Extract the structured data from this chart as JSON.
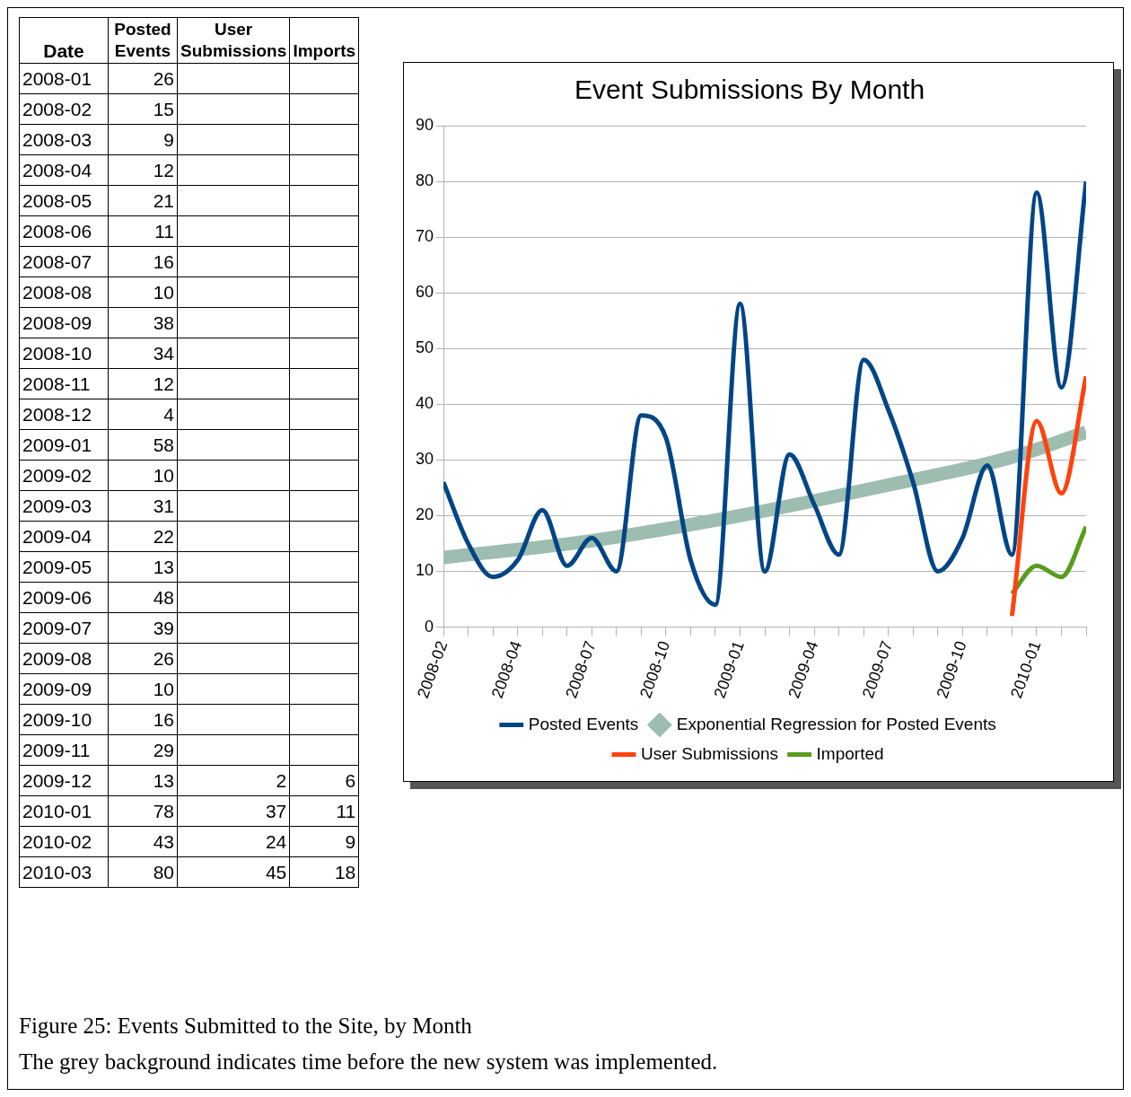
{
  "chart_data": [
    {
      "type": "other",
      "xlabel": "Date",
      "data_labels": true,
      "categories": [
        "2008-01",
        "2008-02",
        "2008-03",
        "2008-04",
        "2008-05",
        "2008-06",
        "2008-07",
        "2008-08",
        "2008-09",
        "2008-10",
        "2008-11",
        "2008-12",
        "2009-01",
        "2009-02",
        "2009-03",
        "2009-04",
        "2009-05",
        "2009-06",
        "2009-07",
        "2009-08",
        "2009-09",
        "2009-10",
        "2009-11",
        "2009-12",
        "2010-01",
        "2010-02",
        "2010-03"
      ],
      "series": [
        {
          "name": "Posted Events",
          "values": [
            26,
            15,
            9,
            12,
            21,
            11,
            16,
            10,
            38,
            34,
            12,
            4,
            58,
            10,
            31,
            22,
            13,
            48,
            39,
            26,
            10,
            16,
            29,
            13,
            78,
            43,
            80
          ]
        },
        {
          "name": "User Submissions",
          "values": [
            null,
            null,
            null,
            null,
            null,
            null,
            null,
            null,
            null,
            null,
            null,
            null,
            null,
            null,
            null,
            null,
            null,
            null,
            null,
            null,
            null,
            null,
            null,
            2,
            37,
            24,
            45
          ]
        },
        {
          "name": "Imports",
          "values": [
            null,
            null,
            null,
            null,
            null,
            null,
            null,
            null,
            null,
            null,
            null,
            null,
            null,
            null,
            null,
            null,
            null,
            null,
            null,
            null,
            null,
            null,
            null,
            6,
            11,
            9,
            18
          ]
        }
      ]
    },
    {
      "type": "line",
      "title": "Event Submissions By Month",
      "x": [
        "2008-01",
        "2008-02",
        "2008-03",
        "2008-04",
        "2008-05",
        "2008-06",
        "2008-07",
        "2008-08",
        "2008-09",
        "2008-10",
        "2008-11",
        "2008-12",
        "2009-01",
        "2009-02",
        "2009-03",
        "2009-04",
        "2009-05",
        "2009-06",
        "2009-07",
        "2009-08",
        "2009-09",
        "2009-10",
        "2009-11",
        "2009-12",
        "2010-01",
        "2010-02",
        "2010-03"
      ],
      "xlim": [
        "2008-01",
        "2010-03"
      ],
      "xticks": [
        {
          "value": "2008-01",
          "label": "2008-02"
        },
        {
          "value": "2008-02",
          "label": null
        },
        {
          "value": "2008-03",
          "label": null
        },
        {
          "value": "2008-04",
          "label": "2008-04"
        },
        {
          "value": "2008-05",
          "label": null
        },
        {
          "value": "2008-06",
          "label": null
        },
        {
          "value": "2008-07",
          "label": "2008-07"
        },
        {
          "value": "2008-08",
          "label": null
        },
        {
          "value": "2008-09",
          "label": null
        },
        {
          "value": "2008-10",
          "label": "2008-10"
        },
        {
          "value": "2008-11",
          "label": null
        },
        {
          "value": "2008-12",
          "label": null
        },
        {
          "value": "2009-01",
          "label": "2009-01"
        },
        {
          "value": "2009-02",
          "label": null
        },
        {
          "value": "2009-03",
          "label": null
        },
        {
          "value": "2009-04",
          "label": "2009-04"
        },
        {
          "value": "2009-05",
          "label": null
        },
        {
          "value": "2009-06",
          "label": null
        },
        {
          "value": "2009-07",
          "label": "2009-07"
        },
        {
          "value": "2009-08",
          "label": null
        },
        {
          "value": "2009-09",
          "label": null
        },
        {
          "value": "2009-10",
          "label": "2009-10"
        },
        {
          "value": "2009-11",
          "label": null
        },
        {
          "value": "2009-12",
          "label": null
        },
        {
          "value": "2010-01",
          "label": "2010-01"
        },
        {
          "value": "2010-02",
          "label": null
        },
        {
          "value": "2010-03",
          "label": null
        }
      ],
      "ylim": [
        0,
        90
      ],
      "yticks": [
        0,
        10,
        20,
        30,
        40,
        50,
        60,
        70,
        80,
        90
      ],
      "grid": "y",
      "legend": "bottom",
      "marker": "none",
      "line_style": "solid",
      "series": [
        {
          "name": "Posted Events",
          "color": "#004586",
          "values": [
            26,
            15,
            9,
            12,
            21,
            11,
            16,
            10,
            38,
            34,
            12,
            4,
            58,
            10,
            31,
            22,
            13,
            48,
            39,
            26,
            10,
            16,
            29,
            13,
            78,
            43,
            80
          ]
        },
        {
          "name": "Exponential Regression for Posted Events",
          "color": "#9dbdb0",
          "x": [
            "2008-01",
            "2008-07",
            "2009-01",
            "2009-07",
            "2009-12",
            "2010-03"
          ],
          "values": [
            12.5,
            15.5,
            20,
            25.5,
            30.5,
            35
          ]
        },
        {
          "name": "User Submissions",
          "color": "#ff420e",
          "values": [
            null,
            null,
            null,
            null,
            null,
            null,
            null,
            null,
            null,
            null,
            null,
            null,
            null,
            null,
            null,
            null,
            null,
            null,
            null,
            null,
            null,
            null,
            null,
            2,
            37,
            24,
            45
          ]
        },
        {
          "name": "Imported",
          "color": "#579d1c",
          "values": [
            null,
            null,
            null,
            null,
            null,
            null,
            null,
            null,
            null,
            null,
            null,
            null,
            null,
            null,
            null,
            null,
            null,
            null,
            null,
            null,
            null,
            null,
            null,
            6,
            11,
            9,
            18
          ]
        }
      ],
      "annotations": [
        "Figure 25: Events Submitted to the Site, by Month",
        "The grey background indicates time before the new system was implemented."
      ]
    }
  ]
}
